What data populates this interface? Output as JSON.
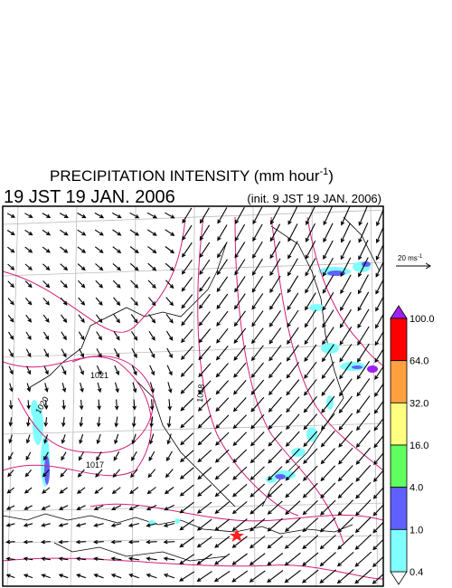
{
  "header": {
    "title": "PRECIPITATION INTENSITY (mm hour",
    "title_exponent": "-1",
    "title_close": ")",
    "valid_time": "19 JST 19 JAN. 2006",
    "init_time": "(init. 9 JST 19 JAN. 2006)"
  },
  "wind_scale": {
    "label": "20 ms",
    "exponent": "-1"
  },
  "colorbar": {
    "labels": [
      "100.0",
      "64.0",
      "32.0",
      "16.0",
      "4.0",
      "1.0",
      "0.4"
    ],
    "colors": [
      "#ff0000",
      "#ffa040",
      "#ffff80",
      "#60ff60",
      "#6060ff",
      "#80ffff"
    ],
    "over_color": "#a020f0",
    "under_color": "#ffffff"
  },
  "isobars": {
    "labels": [
      "1021",
      "1020",
      "1017",
      "1018"
    ]
  }
}
